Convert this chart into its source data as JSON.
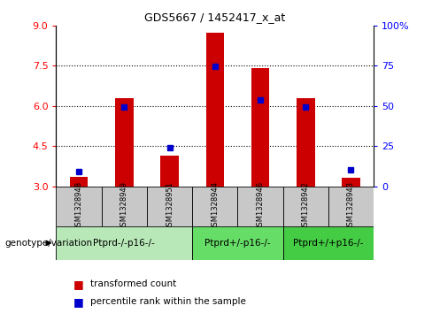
{
  "title": "GDS5667 / 1452417_x_at",
  "samples": [
    "GSM1328948",
    "GSM1328949",
    "GSM1328951",
    "GSM1328944",
    "GSM1328946",
    "GSM1328942",
    "GSM1328943"
  ],
  "red_values": [
    3.35,
    6.3,
    4.15,
    8.75,
    7.4,
    6.3,
    3.3
  ],
  "blue_values": [
    3.55,
    5.97,
    4.45,
    7.48,
    6.22,
    5.97,
    3.62
  ],
  "ylim_left": [
    3.0,
    9.0
  ],
  "ylim_right": [
    0,
    100
  ],
  "yticks_left": [
    3,
    4.5,
    6,
    7.5,
    9
  ],
  "yticks_right": [
    0,
    25,
    50,
    75,
    100
  ],
  "group_labels": [
    "Ptprd-/-p16-/-",
    "Ptprd+/-p16-/-",
    "Ptprd+/+p16-/-"
  ],
  "group_ranges": [
    [
      0,
      2
    ],
    [
      3,
      4
    ],
    [
      5,
      6
    ]
  ],
  "group_colors": [
    "#b8e8b8",
    "#66dd66",
    "#44cc44"
  ],
  "bar_color": "#cc0000",
  "dot_color": "#0000cc",
  "bg_color": "#c8c8c8",
  "legend_red": "transformed count",
  "legend_blue": "percentile rank within the sample",
  "genotype_label": "genotype/variation",
  "bar_width": 0.4
}
